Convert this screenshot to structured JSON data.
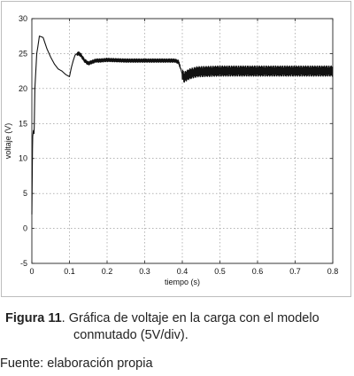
{
  "figure": {
    "caption_label": "Figura 11",
    "caption_sep": ". ",
    "caption_text_1": "Gráfica de voltaje en la carga con el modelo",
    "caption_text_2": "conmutado (5V/div).",
    "source": "Fuente: elaboración propia"
  },
  "chart_data": {
    "type": "line",
    "title": "",
    "xlabel": "tiempo (s)",
    "ylabel": "voltaje (V)",
    "xlim": [
      0,
      0.8
    ],
    "ylim": [
      -5,
      30
    ],
    "xticks": [
      "0",
      "0.1",
      "0.2",
      "0.3",
      "0.4",
      "0.5",
      "0.6",
      "0.7",
      "0.8"
    ],
    "yticks": [
      "-5",
      "0",
      "5",
      "10",
      "15",
      "20",
      "25",
      "30"
    ],
    "grid": true,
    "line_color": "#111111",
    "series": [
      {
        "x": [
          0,
          0.002,
          0.004,
          0.006,
          0.008,
          0.01,
          0.013,
          0.016,
          0.02,
          0.025,
          0.03,
          0.035,
          0.04,
          0.05,
          0.06,
          0.07,
          0.08,
          0.09,
          0.1,
          0.105,
          0.11,
          0.115,
          0.12,
          0.125,
          0.13,
          0.14,
          0.15,
          0.16,
          0.17,
          0.18,
          0.2,
          0.25,
          0.3,
          0.35,
          0.38,
          0.39,
          0.395,
          0.4,
          0.405,
          0.41,
          0.42,
          0.44,
          0.5,
          0.6,
          0.7,
          0.8
        ],
        "y": [
          2,
          13,
          14,
          13.5,
          20,
          22,
          25,
          26,
          27.5,
          27.4,
          27.3,
          26.5,
          25.7,
          24.5,
          23.5,
          22.8,
          22.5,
          22,
          21.7,
          23,
          24,
          24.8,
          25,
          25,
          24.8,
          24,
          23.6,
          23.8,
          24,
          24,
          24.1,
          24,
          24,
          24,
          24,
          23.8,
          23,
          22,
          21.6,
          21.8,
          22.1,
          22.4,
          22.5,
          22.5,
          22.5,
          22.5
        ],
        "ripple": [
          {
            "x_from": 0.12,
            "x_to": 0.395,
            "amplitude": 0.25
          },
          {
            "x_from": 0.4,
            "x_to": 0.8,
            "amplitude": 0.75
          }
        ]
      }
    ]
  }
}
